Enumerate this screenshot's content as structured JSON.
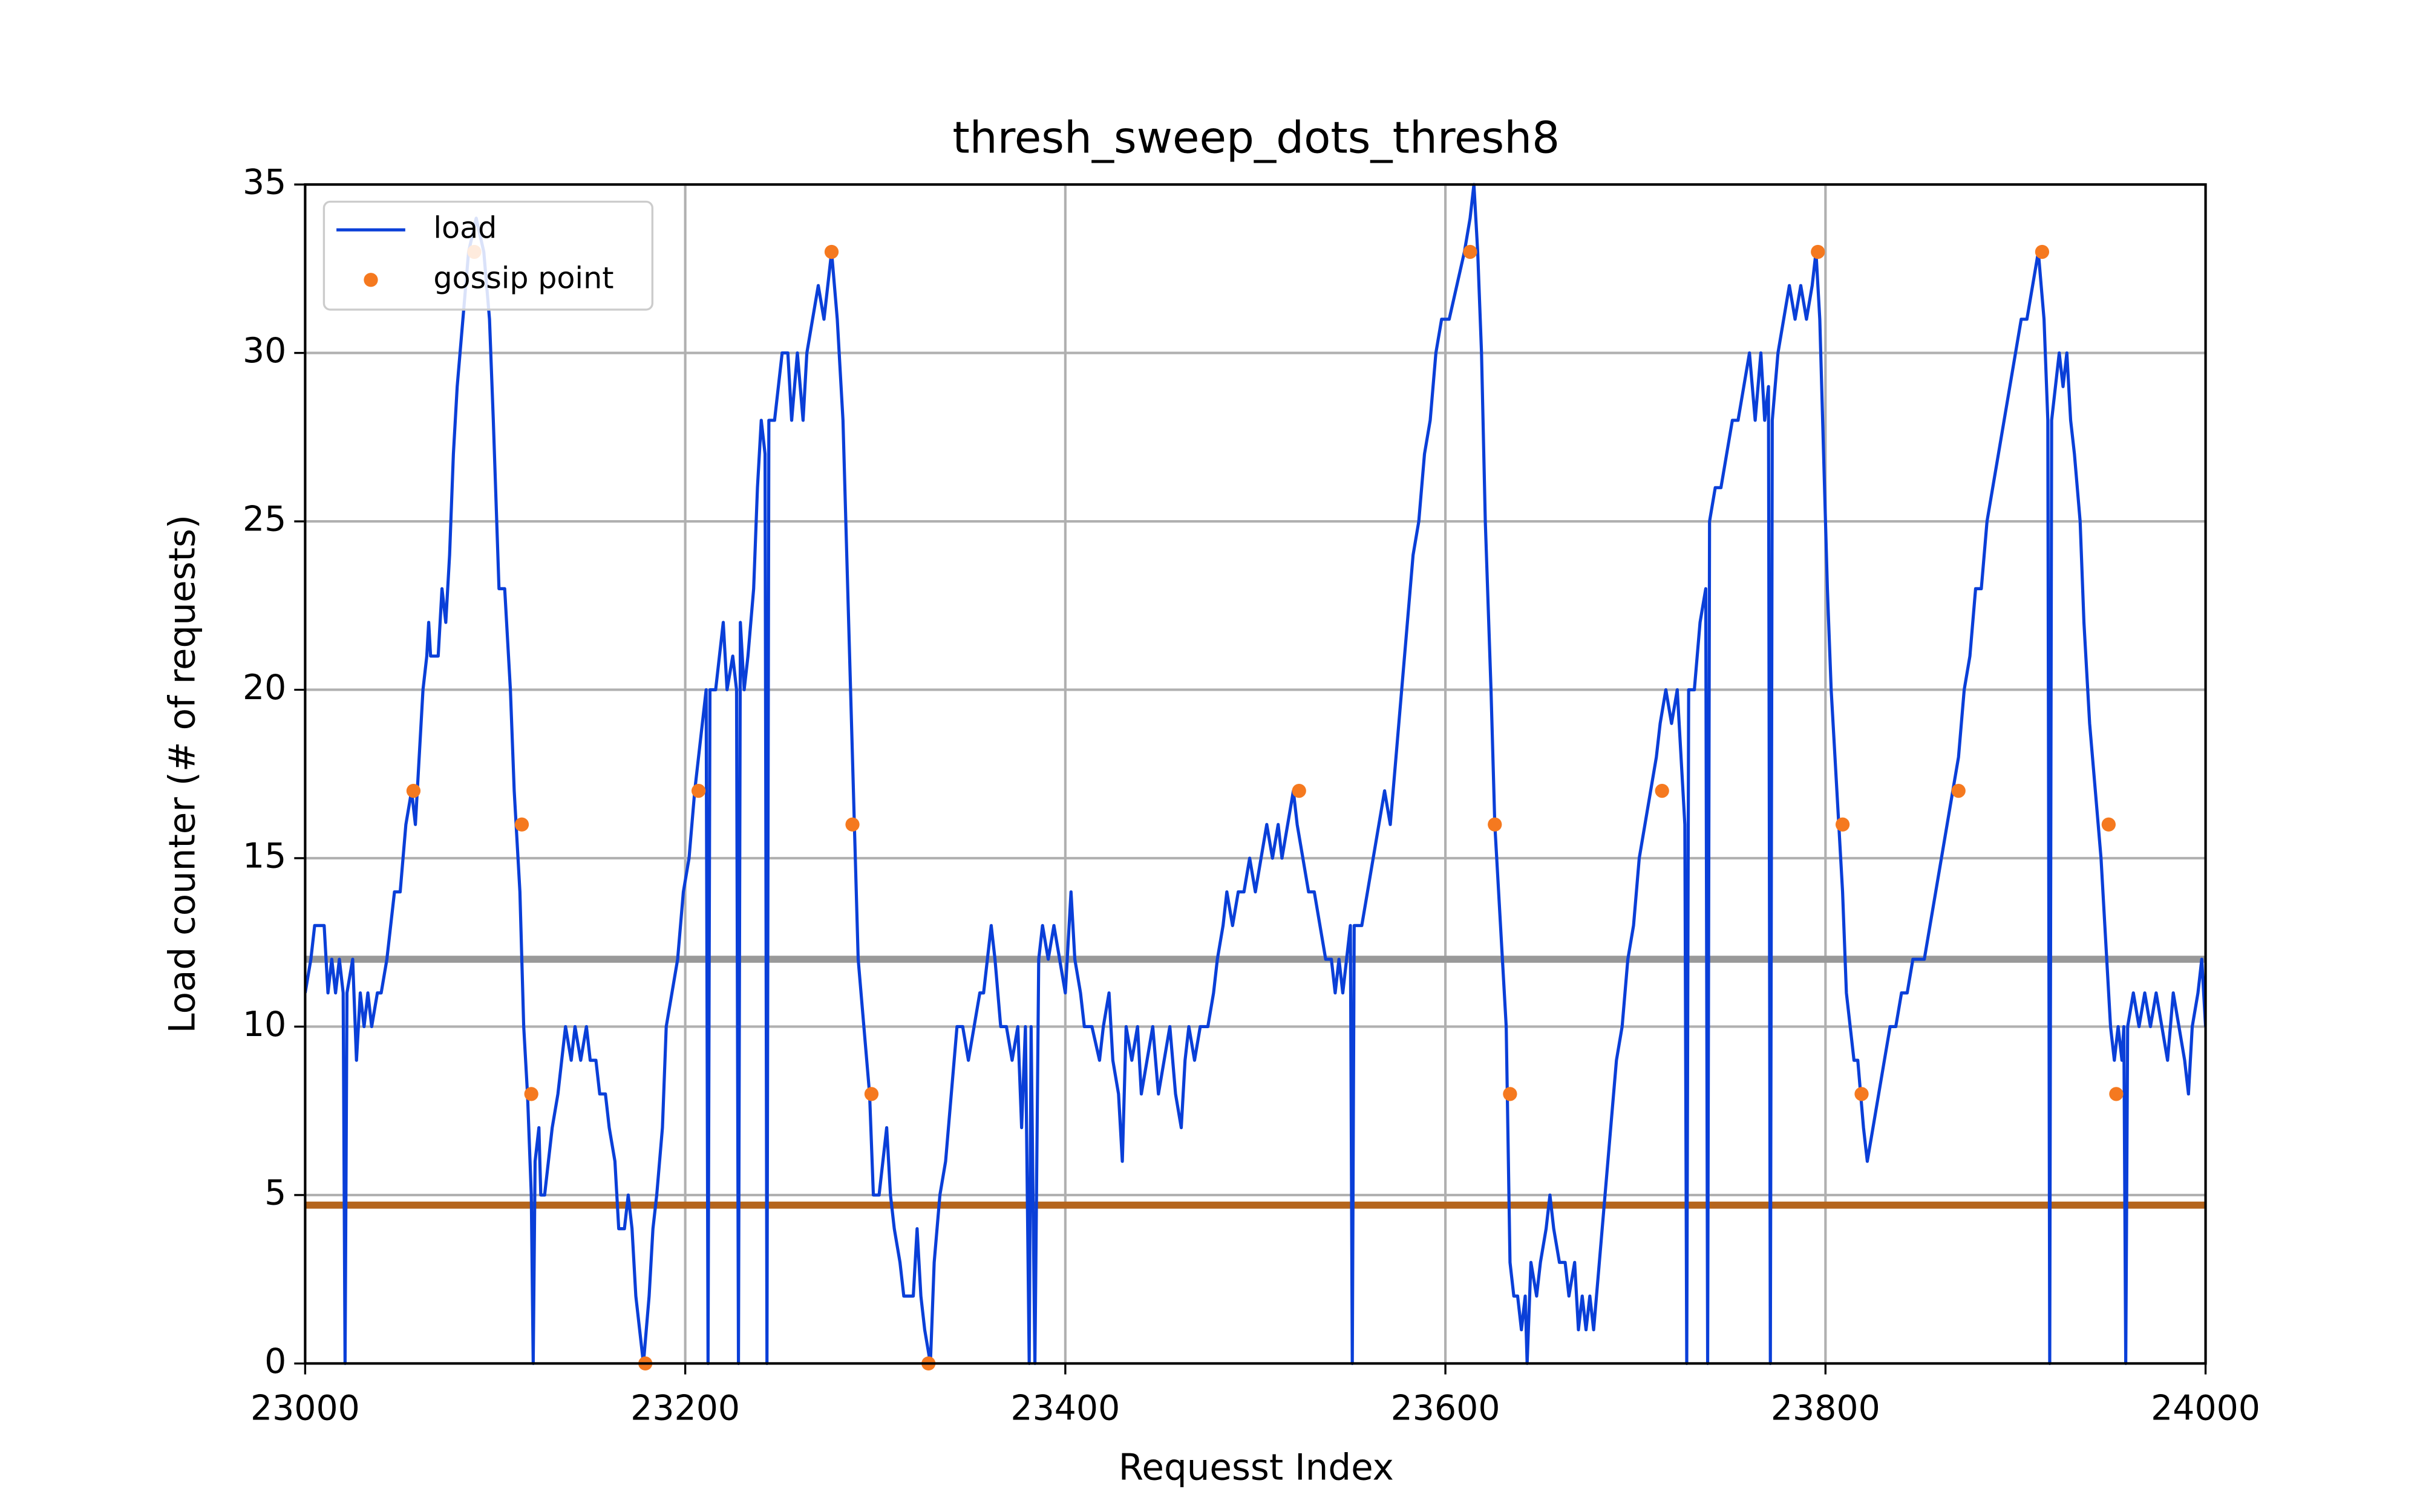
{
  "chart_data": {
    "type": "line",
    "title": "thresh_sweep_dots_thresh8",
    "x_label": "Requesst Index",
    "y_label": "Load counter (# of requests)",
    "xlim": [
      23000,
      24000
    ],
    "ylim": [
      0,
      35
    ],
    "xticks": [
      23000,
      23200,
      23400,
      23600,
      23800,
      24000
    ],
    "yticks": [
      0,
      5,
      10,
      15,
      20,
      25,
      30,
      35
    ],
    "grid": true,
    "legend": "upper left",
    "hlines": [
      {
        "value": 12,
        "color": "#999999"
      },
      {
        "value": 4.7,
        "color": "#b5651d"
      }
    ],
    "series": [
      {
        "name": "load",
        "type": "line",
        "color": "#0a3fd8",
        "x": [
          23000,
          23003,
          23005,
          23010,
          23012,
          23014,
          23016,
          23018,
          23020,
          23021,
          23022,
          23025,
          23027,
          23029,
          23031,
          23033,
          23035,
          23038,
          23040,
          23043,
          23047,
          23050,
          23053,
          23056,
          23058,
          23060,
          23062,
          23064,
          23065,
          23066,
          23070,
          23072,
          23074,
          23076,
          23078,
          23080,
          23083,
          23086,
          23090,
          23094,
          23097,
          23099,
          23102,
          23105,
          23108,
          23110,
          23113,
          23115,
          23117,
          23119,
          23120,
          23121,
          23123,
          23124,
          23126,
          23128,
          23130,
          23133,
          23135,
          23137,
          23140,
          23142,
          23145,
          23148,
          23150,
          23153,
          23155,
          23158,
          23160,
          23163,
          23165,
          23168,
          23170,
          23172,
          23174,
          23176,
          23178,
          23181,
          23183,
          23185,
          23188,
          23190,
          23193,
          23196,
          23199,
          23202,
          23205,
          23207,
          23209,
          23211,
          23212,
          23213,
          23216,
          23218,
          23220,
          23222,
          23225,
          23227,
          23228,
          23229,
          23231,
          23233,
          23236,
          23238,
          23240,
          23242,
          23243,
          23244,
          23247,
          23249,
          23251,
          23254,
          23256,
          23259,
          23262,
          23264,
          23267,
          23270,
          23273,
          23275,
          23277,
          23280,
          23283,
          23285,
          23287,
          23289,
          23291,
          23294,
          23297,
          23299,
          23302,
          23304,
          23306,
          23308,
          23310,
          23313,
          23315,
          23318,
          23320,
          23322,
          23324,
          23326,
          23329,
          23331,
          23334,
          23337,
          23340,
          23343,
          23346,
          23349,
          23352,
          23355,
          23357,
          23359,
          23361,
          23363,
          23366,
          23369,
          23372,
          23375,
          23377,
          23379,
          23381,
          23382,
          23384,
          23386,
          23388,
          23391,
          23394,
          23397,
          23400,
          23403,
          23405,
          23408,
          23410,
          23414,
          23418,
          23420,
          23423,
          23425,
          23428,
          23430,
          23432,
          23435,
          23438,
          23440,
          23443,
          23446,
          23449,
          23452,
          23455,
          23458,
          23461,
          23463,
          23465,
          23468,
          23471,
          23475,
          23478,
          23480,
          23483,
          23485,
          23488,
          23491,
          23494,
          23497,
          23500,
          23503,
          23506,
          23509,
          23512,
          23514,
          23517,
          23520,
          23522,
          23525,
          23528,
          23531,
          23534,
          23537,
          23540,
          23542,
          23544,
          23546,
          23550,
          23551,
          23552,
          23556,
          23559,
          23562,
          23565,
          23568,
          23571,
          23574,
          23577,
          23580,
          23583,
          23586,
          23589,
          23592,
          23595,
          23598,
          23602,
          23606,
          23610,
          23613,
          23615,
          23617,
          23619,
          23621,
          23624,
          23626,
          23629,
          23632,
          23634,
          23636,
          23638,
          23640,
          23642,
          23643,
          23645,
          23648,
          23650,
          23653,
          23655,
          23657,
          23660,
          23663,
          23665,
          23668,
          23670,
          23672,
          23674,
          23676,
          23678,
          23681,
          23684,
          23687,
          23690,
          23693,
          23696,
          23699,
          23702,
          23705,
          23708,
          23711,
          23713,
          23716,
          23719,
          23722,
          23724,
          23726,
          23727,
          23728,
          23731,
          23734,
          23737,
          23738,
          23739,
          23742,
          23745,
          23748,
          23751,
          23754,
          23757,
          23760,
          23763,
          23766,
          23768,
          23770,
          23771,
          23772,
          23775,
          23778,
          23781,
          23784,
          23787,
          23790,
          23793,
          23795,
          23797,
          23799,
          23801,
          23803,
          23806,
          23809,
          23811,
          23813,
          23815,
          23817,
          23820,
          23822,
          23825,
          23828,
          23831,
          23834,
          23837,
          23840,
          23843,
          23846,
          23849,
          23852,
          23855,
          23858,
          23861,
          23864,
          23867,
          23870,
          23873,
          23876,
          23879,
          23882,
          23885,
          23888,
          23891,
          23894,
          23897,
          23900,
          23903,
          23906,
          23909,
          23912,
          23915,
          23917,
          23918,
          23919,
          23921,
          23923,
          23925,
          23927,
          23929,
          23931,
          23934,
          23936,
          23939,
          23942,
          23945,
          23948,
          23950,
          23952,
          23954,
          23956,
          23957,
          23958,
          23959,
          23962,
          23965,
          23968,
          23971,
          23974,
          23977,
          23980,
          23983,
          23986,
          23989,
          23991,
          23993,
          23996,
          23998,
          24000
        ],
        "values": [
          11,
          12,
          13,
          13,
          11,
          12,
          11,
          12,
          11,
          0,
          11,
          12,
          9,
          11,
          10,
          11,
          10,
          11,
          11,
          12,
          14,
          14,
          16,
          17,
          16,
          18,
          20,
          21,
          22,
          21,
          21,
          23,
          22,
          24,
          27,
          29,
          31,
          33,
          34,
          33,
          31,
          28,
          23,
          23,
          20,
          17,
          14,
          10,
          8,
          5,
          0,
          6,
          7,
          5,
          5,
          6,
          7,
          8,
          9,
          10,
          9,
          10,
          9,
          10,
          9,
          9,
          8,
          8,
          7,
          6,
          4,
          4,
          5,
          4,
          2,
          1,
          0,
          2,
          4,
          5,
          7,
          10,
          11,
          12,
          14,
          15,
          17,
          18,
          19,
          20,
          0,
          20,
          20,
          21,
          22,
          20,
          21,
          20,
          0,
          22,
          20,
          21,
          23,
          26,
          28,
          27,
          0,
          28,
          28,
          29,
          30,
          30,
          28,
          30,
          28,
          30,
          31,
          32,
          31,
          32,
          33,
          31,
          28,
          24,
          20,
          16,
          12,
          10,
          8,
          5,
          5,
          6,
          7,
          5,
          4,
          3,
          2,
          2,
          2,
          4,
          2,
          1,
          0,
          3,
          5,
          6,
          8,
          10,
          10,
          9,
          10,
          11,
          11,
          12,
          13,
          12,
          10,
          10,
          9,
          10,
          7,
          10,
          0,
          10,
          0,
          12,
          13,
          12,
          13,
          12,
          11,
          14,
          12,
          11,
          10,
          10,
          9,
          10,
          11,
          9,
          8,
          6,
          10,
          9,
          10,
          8,
          9,
          10,
          8,
          9,
          10,
          8,
          7,
          9,
          10,
          9,
          10,
          10,
          11,
          12,
          13,
          14,
          13,
          14,
          14,
          15,
          14,
          15,
          16,
          15,
          16,
          15,
          16,
          17,
          16,
          15,
          14,
          14,
          13,
          12,
          12,
          11,
          12,
          11,
          13,
          0,
          13,
          13,
          14,
          15,
          16,
          17,
          16,
          18,
          20,
          22,
          24,
          25,
          27,
          28,
          30,
          31,
          31,
          32,
          33,
          34,
          35,
          33,
          30,
          25,
          20,
          16,
          13,
          10,
          3,
          2,
          2,
          1,
          2,
          0,
          3,
          2,
          3,
          4,
          5,
          4,
          3,
          3,
          2,
          3,
          1,
          2,
          1,
          2,
          1,
          3,
          5,
          7,
          9,
          10,
          12,
          13,
          15,
          16,
          17,
          18,
          19,
          20,
          19,
          20,
          18,
          16,
          0,
          20,
          20,
          22,
          23,
          0,
          25,
          26,
          26,
          27,
          28,
          28,
          29,
          30,
          28,
          30,
          28,
          29,
          0,
          28,
          30,
          31,
          32,
          31,
          32,
          31,
          32,
          33,
          31,
          27,
          23,
          20,
          17,
          14,
          11,
          10,
          9,
          9,
          7,
          6,
          7,
          8,
          9,
          10,
          10,
          11,
          11,
          12,
          12,
          12,
          13,
          14,
          15,
          16,
          17,
          18,
          20,
          21,
          23,
          23,
          25,
          26,
          27,
          28,
          29,
          30,
          31,
          31,
          32,
          33,
          31,
          28,
          0,
          28,
          29,
          30,
          29,
          30,
          28,
          27,
          25,
          22,
          19,
          17,
          15,
          12,
          10,
          9,
          10,
          9,
          10,
          0,
          10,
          11,
          10,
          11,
          10,
          11,
          10,
          9,
          11,
          10,
          9,
          8,
          10,
          11,
          12,
          10
        ]
      },
      {
        "name": "gossip point",
        "type": "scatter",
        "color": "#f5791f",
        "x": [
          23057,
          23089,
          23114,
          23119,
          23179,
          23207,
          23277,
          23288,
          23298,
          23328,
          23523,
          23613,
          23626,
          23634,
          23714,
          23796,
          23809,
          23819,
          23870,
          23914,
          23949,
          23953
        ],
        "values": [
          17,
          33,
          16,
          8,
          0,
          17,
          33,
          16,
          8,
          0,
          17,
          33,
          16,
          8,
          17,
          33,
          16,
          8,
          17,
          33,
          16,
          8
        ]
      }
    ]
  }
}
